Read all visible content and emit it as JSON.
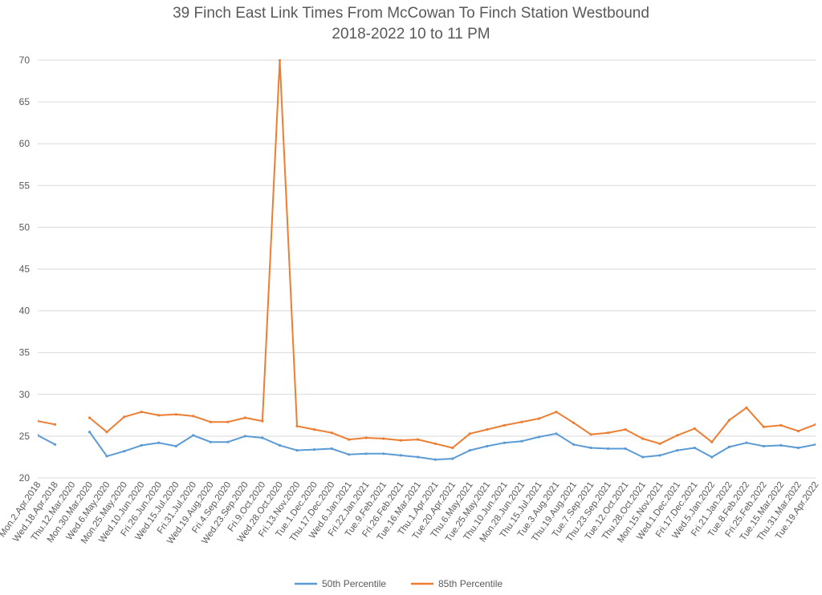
{
  "chart_data": {
    "type": "line",
    "title": "39 Finch East Link Times From McCowan To Finch Station Westbound",
    "subtitle": "2018-2022 10 to 11 PM",
    "xlabel": "",
    "ylabel": "",
    "ylim": [
      20,
      70
    ],
    "yticks": [
      20,
      25,
      30,
      35,
      40,
      45,
      50,
      55,
      60,
      65,
      70
    ],
    "grid": true,
    "legend_position": "bottom",
    "categories": [
      "Mon.2.Apr.2018",
      "Wed.18.Apr.2018",
      "Thu.12.Mar.2020",
      "Mon.30.Mar.2020",
      "Wed.6.May.2020",
      "Mon.25.May.2020",
      "Wed.10.Jun.2020",
      "Fri.26.Jun.2020",
      "Wed.15.Jul.2020",
      "Fri.31.Jul.2020",
      "Wed.19.Aug.2020",
      "Fri.4.Sep.2020",
      "Wed.23.Sep.2020",
      "Fri.9.Oct.2020",
      "Wed.28.Oct.2020",
      "Fri.13.Nov.2020",
      "Tue.1.Dec.2020",
      "Thu.17.Dec.2020",
      "Wed.6.Jan.2021",
      "Fri.22.Jan.2021",
      "Tue.9.Feb.2021",
      "Fri.26.Feb.2021",
      "Tue.16.Mar.2021",
      "Thu.1.Apr.2021",
      "Tue.20.Apr.2021",
      "Thu.6.May.2021",
      "Tue.25.May.2021",
      "Thu.10.Jun.2021",
      "Mon.28.Jun.2021",
      "Thu.15.Jul.2021",
      "Tue.3.Aug.2021",
      "Thu.19.Aug.2021",
      "Tue.7.Sep.2021",
      "Thu.23.Sep.2021",
      "Tue.12.Oct.2021",
      "Thu.28.Oct.2021",
      "Mon.15.Nov.2021",
      "Wed.1.Dec.2021",
      "Fri.17.Dec.2021",
      "Wed.5.Jan.2022",
      "Fri.21.Jan.2022",
      "Tue.8.Feb.2022",
      "Fri.25.Feb.2022",
      "Tue.15.Mar.2022",
      "Thu.31.Mar.2022",
      "Tue.19.Apr.2022"
    ],
    "series": [
      {
        "name": "50th Percentile",
        "color": "#5B9BD5",
        "values": [
          25.1,
          24.0,
          null,
          25.5,
          22.6,
          23.2,
          23.9,
          24.2,
          23.8,
          25.1,
          24.3,
          24.3,
          25.0,
          24.8,
          23.9,
          23.3,
          23.4,
          23.5,
          22.8,
          22.9,
          22.9,
          22.7,
          22.5,
          22.2,
          22.3,
          23.3,
          23.8,
          24.2,
          24.4,
          24.9,
          25.3,
          24.0,
          23.6,
          23.5,
          23.5,
          22.5,
          22.7,
          23.3,
          23.6,
          22.5,
          23.7,
          24.2,
          23.8,
          23.9,
          23.6,
          24.0
        ]
      },
      {
        "name": "85th Percentile",
        "color": "#ED7D31",
        "values": [
          26.8,
          26.4,
          null,
          27.2,
          25.5,
          27.3,
          27.9,
          27.5,
          27.6,
          27.4,
          26.7,
          26.7,
          27.2,
          26.8,
          70.0,
          26.2,
          25.8,
          25.4,
          24.6,
          24.8,
          24.7,
          24.5,
          24.6,
          24.1,
          23.6,
          25.3,
          25.8,
          26.3,
          26.7,
          27.1,
          27.9,
          26.6,
          25.2,
          25.4,
          25.8,
          24.7,
          24.1,
          25.1,
          25.9,
          24.3,
          26.9,
          28.4,
          26.1,
          26.3,
          25.6,
          26.4
        ]
      }
    ]
  }
}
